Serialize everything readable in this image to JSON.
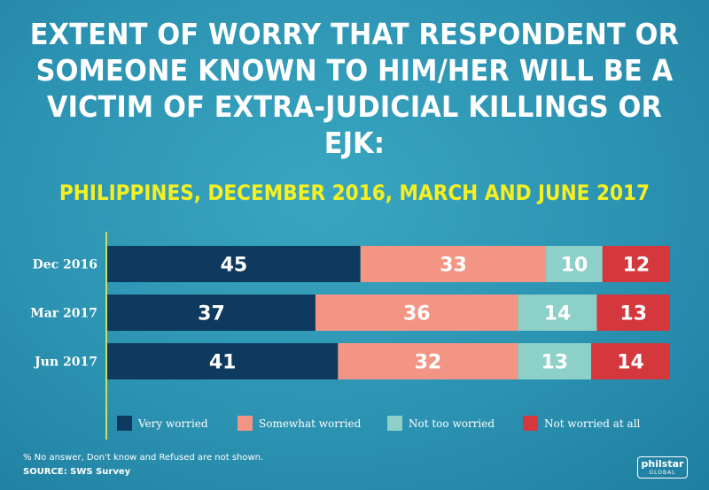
{
  "title": "EXTENT OF WORRY THAT RESPONDENT OR SOMEONE KNOWN TO HIM/HER WILL BE A VICTIM OF EXTRA-JUDICIAL KILLINGS OR EJK:",
  "subtitle": "PHILIPPINES, DECEMBER 2016, MARCH AND JUNE 2017",
  "footnote": "% No answer, Don't know and Refused are not shown.",
  "source": "SOURCE: SWS Survey",
  "logo": {
    "main": "philstar",
    "sub": "GLOBAL"
  },
  "colors": {
    "title": "#ffffff",
    "subtitle": "#f6f021",
    "axis_line": "#c8e15a"
  },
  "chart_data": {
    "type": "bar",
    "orientation": "horizontal",
    "stacked": true,
    "categories": [
      "Dec 2016",
      "Mar 2017",
      "Jun 2017"
    ],
    "series": [
      {
        "name": "Very worried",
        "values": [
          45,
          37,
          41
        ],
        "color": "#0f3a5f",
        "label_color": "#ffffff"
      },
      {
        "name": "Somewhat worried",
        "values": [
          33,
          36,
          32
        ],
        "color": "#f39584",
        "label_color": "#ffffff"
      },
      {
        "name": "Not too worried",
        "values": [
          10,
          14,
          13
        ],
        "color": "#8dd0c8",
        "label_color": "#ffffff"
      },
      {
        "name": "Not worried at all",
        "values": [
          12,
          13,
          14
        ],
        "color": "#d4373c",
        "label_color": "#ffffff"
      }
    ],
    "xlim": [
      0,
      100
    ],
    "legend_position": "bottom",
    "grid": false
  }
}
